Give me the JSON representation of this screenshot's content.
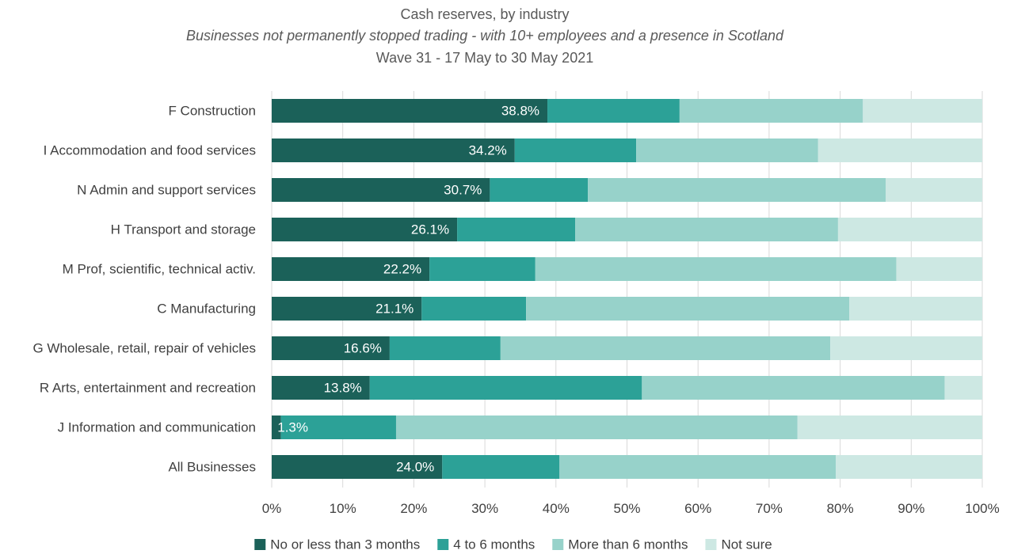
{
  "chart_data": {
    "type": "bar",
    "orientation": "horizontal",
    "stacked": true,
    "title": "Cash reserves, by industry",
    "subtitle": "Businesses not permanently stopped trading -  with 10+ employees and a presence in Scotland",
    "subtitle2": "Wave 31 - 17 May to 30 May 2021",
    "xlabel": "",
    "ylabel": "",
    "xlim": [
      0,
      100
    ],
    "grid": true,
    "legend_position": "bottom",
    "ticks": [
      "0%",
      "10%",
      "20%",
      "30%",
      "40%",
      "50%",
      "60%",
      "70%",
      "80%",
      "90%",
      "100%"
    ],
    "categories": [
      "F Construction",
      "I Accommodation and food services",
      "N Admin and support services",
      "H Transport and storage",
      "M Prof, scientific, technical activ.",
      "C Manufacturing",
      "G Wholesale, retail, repair of vehicles",
      "R Arts, entertainment and recreation",
      "J Information and communication",
      "All Businesses"
    ],
    "series": [
      {
        "name": "No or less than 3 months",
        "color": "#1b6159",
        "values": [
          38.8,
          34.2,
          30.7,
          26.1,
          22.2,
          21.1,
          16.6,
          13.8,
          1.3,
          24.0
        ]
      },
      {
        "name": "4 to 6 months",
        "color": "#2ca197",
        "values": [
          18.6,
          17.1,
          13.8,
          16.6,
          14.9,
          14.7,
          15.6,
          38.3,
          16.2,
          16.5
        ]
      },
      {
        "name": "More than 6 months",
        "color": "#97d2ca",
        "values": [
          25.8,
          25.6,
          41.9,
          37.0,
          50.8,
          45.5,
          46.4,
          42.6,
          56.5,
          38.9
        ]
      },
      {
        "name": "Not sure",
        "color": "#cde8e3",
        "values": [
          16.8,
          23.1,
          13.6,
          20.3,
          12.1,
          18.7,
          21.4,
          5.3,
          26.0,
          20.6
        ]
      }
    ],
    "data_labels": [
      "38.8%",
      "34.2%",
      "30.7%",
      "26.1%",
      "22.2%",
      "21.1%",
      "16.6%",
      "13.8%",
      "1.3%",
      "24.0%"
    ]
  }
}
